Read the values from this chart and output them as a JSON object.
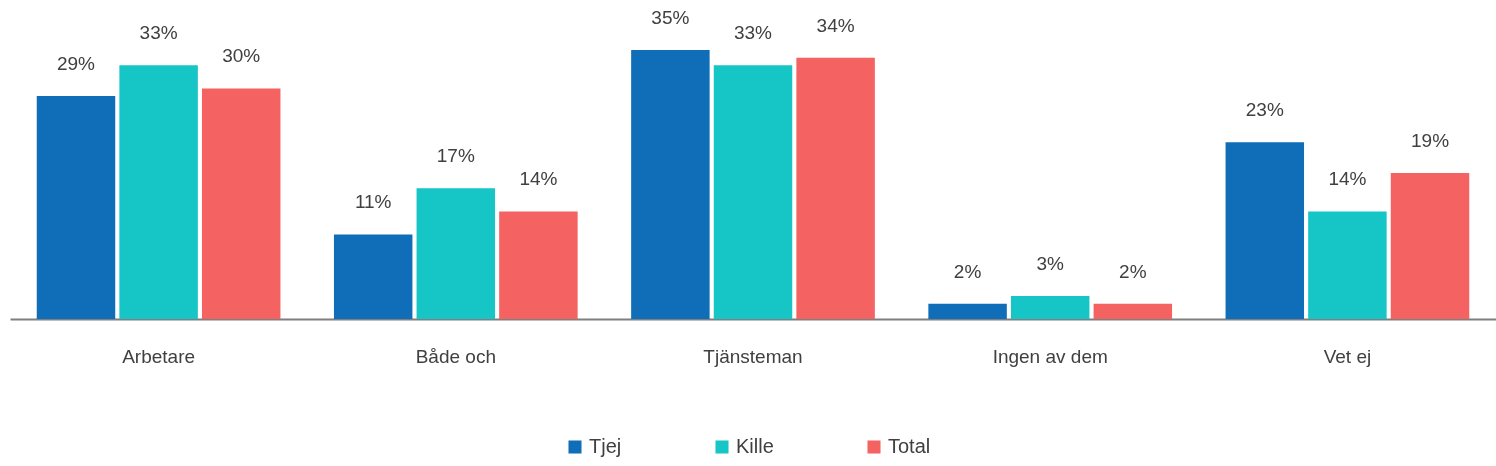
{
  "chart_data": {
    "type": "bar",
    "categories": [
      "Arbetare",
      "Både och",
      "Tjänsteman",
      "Ingen av dem",
      "Vet ej"
    ],
    "series": [
      {
        "name": "Tjej",
        "color": "#106eb8",
        "values": [
          29,
          11,
          35,
          2,
          23
        ],
        "value_labels": [
          "29%",
          "11%",
          "35%",
          "2%",
          "23%"
        ]
      },
      {
        "name": "Kille",
        "color": "#16c5c5",
        "values": [
          33,
          17,
          33,
          3,
          14
        ],
        "value_labels": [
          "33%",
          "17%",
          "33%",
          "3%",
          "14%"
        ]
      },
      {
        "name": "Total",
        "color": "#f46262",
        "values": [
          30,
          14,
          34,
          2,
          19
        ],
        "value_labels": [
          "30%",
          "14%",
          "34%",
          "2%",
          "19%"
        ]
      }
    ],
    "legend": "bottom",
    "grid": false
  }
}
